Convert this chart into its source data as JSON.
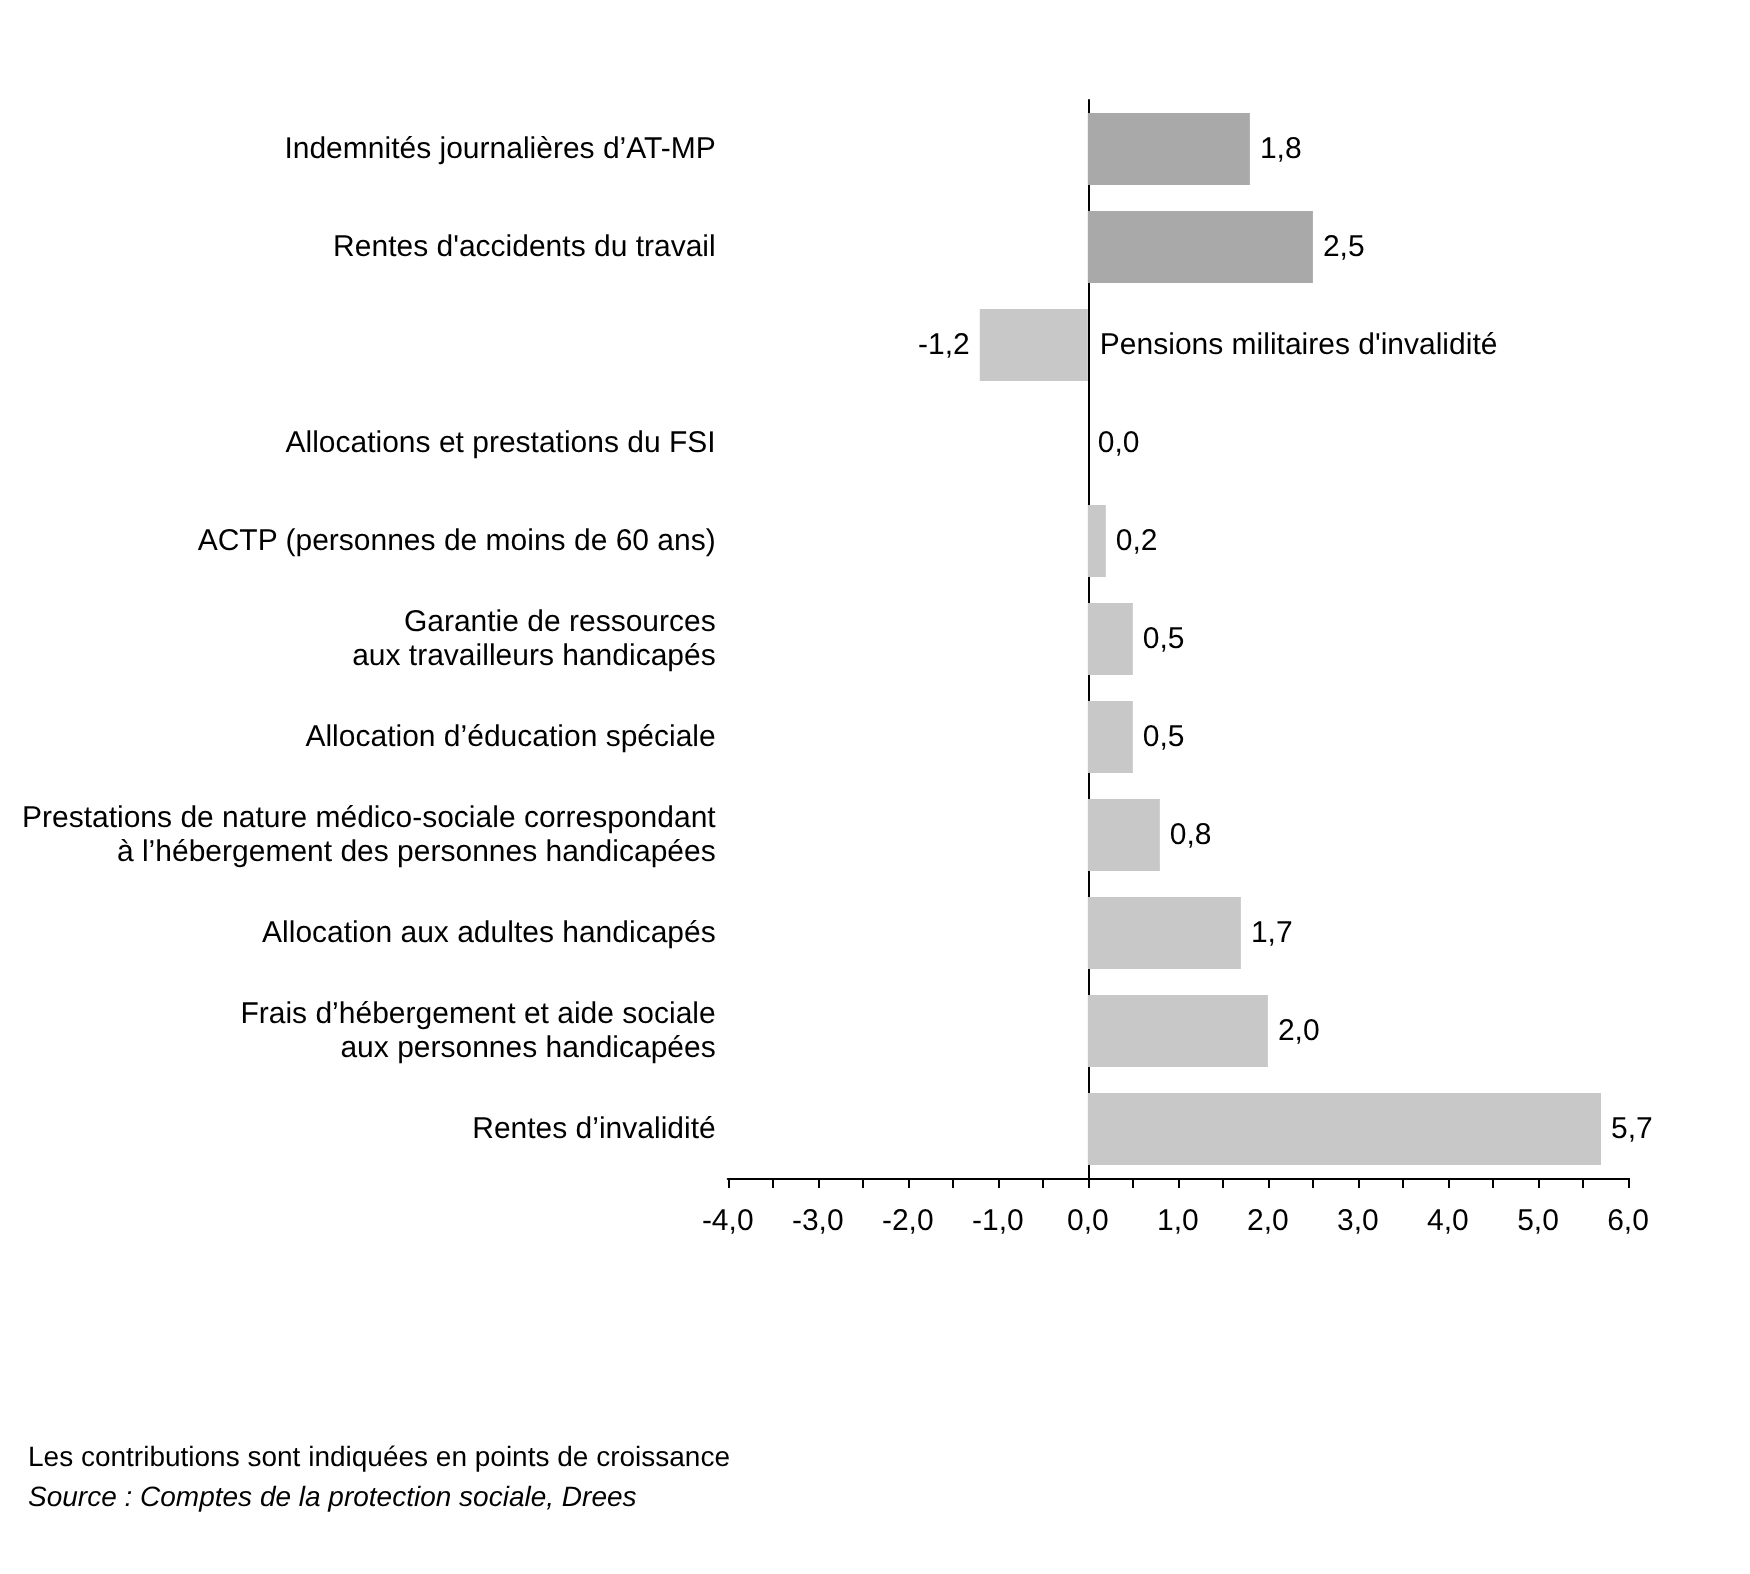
{
  "chart_data": {
    "type": "bar",
    "orientation": "horizontal",
    "categories": [
      "Indemnités journalières d’AT-MP",
      "Rentes d'accidents du travail",
      "Pensions militaires d'invalidité",
      "Allocations et prestations du FSI",
      "ACTP (personnes de moins de 60 ans)",
      "Garantie de ressources\naux travailleurs handicapés",
      "Allocation d’éducation spéciale",
      "Prestations de nature médico-sociale correspondant\nà l’hébergement des personnes handicapées",
      "Allocation aux adultes handicapés",
      "Frais d’hébergement et aide sociale\naux personnes handicapées",
      "Rentes d’invalidité"
    ],
    "values": [
      1.8,
      2.5,
      -1.2,
      0.0,
      0.2,
      0.5,
      0.5,
      0.8,
      1.7,
      2.0,
      5.7
    ],
    "colors": [
      "#a9a9a9",
      "#a9a9a9",
      "#c8c8c8",
      "#c8c8c8",
      "#c8c8c8",
      "#c8c8c8",
      "#c8c8c8",
      "#c8c8c8",
      "#c8c8c8",
      "#c8c8c8",
      "#c8c8c8"
    ],
    "value_labels": [
      "1,8",
      "2,5",
      "-1,2",
      "0,0",
      "0,2",
      "0,5",
      "0,5",
      "0,8",
      "1,7",
      "2,0",
      "5,7"
    ],
    "xlim": [
      -4,
      6
    ],
    "xticks": [
      {
        "value": -4,
        "label": "-4,0"
      },
      {
        "value": -3.5,
        "label": null
      },
      {
        "value": -3,
        "label": "-3,0"
      },
      {
        "value": -2.5,
        "label": null
      },
      {
        "value": -2,
        "label": "-2,0"
      },
      {
        "value": -1.5,
        "label": null
      },
      {
        "value": -1,
        "label": "-1,0"
      },
      {
        "value": -0.5,
        "label": null
      },
      {
        "value": 0,
        "label": "0,0"
      },
      {
        "value": 0.5,
        "label": null
      },
      {
        "value": 1,
        "label": "1,0"
      },
      {
        "value": 1.5,
        "label": null
      },
      {
        "value": 2,
        "label": "2,0"
      },
      {
        "value": 2.5,
        "label": null
      },
      {
        "value": 3,
        "label": "3,0"
      },
      {
        "value": 3.5,
        "label": null
      },
      {
        "value": 4,
        "label": "4,0"
      },
      {
        "value": 4.5,
        "label": null
      },
      {
        "value": 5,
        "label": "5,0"
      },
      {
        "value": 5.5,
        "label": null
      },
      {
        "value": 6,
        "label": "6,0"
      }
    ],
    "annotations": [
      "Les contributions sont indiquées en points de croissance",
      "Source : Comptes de la protection sociale, Drees"
    ]
  }
}
